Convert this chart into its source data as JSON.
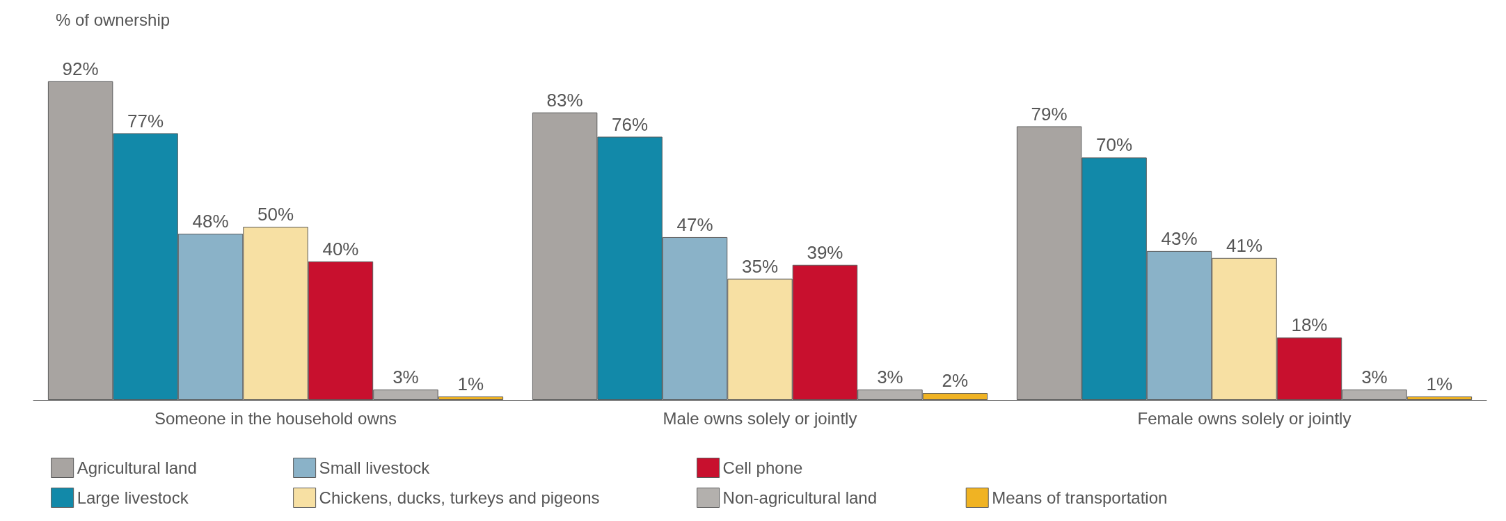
{
  "chart_data": {
    "type": "bar",
    "ylabel": "% of ownership",
    "categories": [
      "Someone in the household owns",
      "Male owns solely or jointly",
      "Female owns solely or jointly"
    ],
    "series": [
      {
        "name": "Agricultural land",
        "color": "#a8a4a1",
        "values": [
          92,
          83,
          79
        ],
        "value_labels": [
          "92%",
          "83%",
          "79%"
        ]
      },
      {
        "name": "Large livestock",
        "color": "#1289a9",
        "values": [
          77,
          76,
          70
        ],
        "value_labels": [
          "77%",
          "76%",
          "70%"
        ]
      },
      {
        "name": "Small livestock",
        "color": "#8ab2c8",
        "values": [
          48,
          47,
          43
        ],
        "value_labels": [
          "48%",
          "47%",
          "43%"
        ]
      },
      {
        "name": "Chickens, ducks, turkeys and pigeons",
        "color": "#f7e0a3",
        "values": [
          50,
          35,
          41
        ],
        "value_labels": [
          "50%",
          "35%",
          "41%"
        ]
      },
      {
        "name": "Cell phone",
        "color": "#c8102e",
        "values": [
          40,
          39,
          18
        ],
        "value_labels": [
          "40%",
          "39%",
          "18%"
        ]
      },
      {
        "name": "Non-agricultural land",
        "color": "#b3b0ad",
        "values": [
          3,
          3,
          3
        ],
        "value_labels": [
          "3%",
          "3%",
          "3%"
        ]
      },
      {
        "name": "Means of transportation",
        "color": "#f0b323",
        "values": [
          1,
          2,
          1
        ],
        "value_labels": [
          "1%",
          "2%",
          "1%"
        ]
      }
    ],
    "legend": "bottom",
    "grid": false
  }
}
